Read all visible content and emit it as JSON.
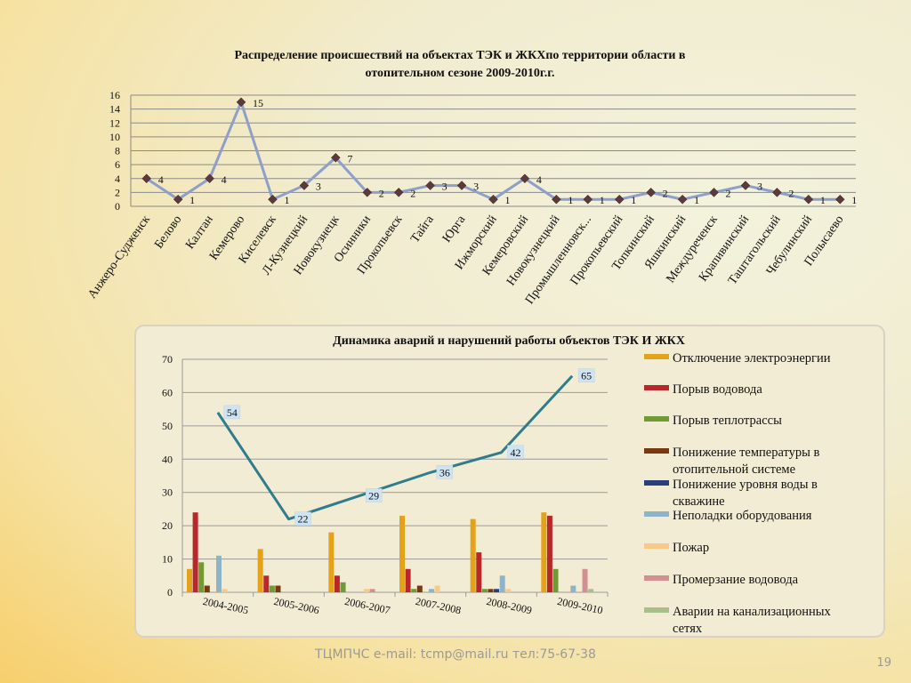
{
  "chart_data": [
    {
      "type": "line",
      "title_lines": [
        "Распределение происшествий на объектах ТЭК и ЖКХпо территории области в",
        "отопительном сезоне 2009-2010г.г."
      ],
      "categories": [
        "Анжеро-Судженск",
        "Белово",
        "Калтан",
        "Кемерово",
        "Киселевск",
        "Л-Кузнецкий",
        "Новокузнецк",
        "Осинники",
        "Прокопьевск",
        "Тайга",
        "Юрга",
        "Ижморский",
        "Кемеровский",
        "Новокузнецкий",
        "Промышленновск...",
        "Прокопьевский",
        "Топкинский",
        "Яшкинский",
        "Междуреченск",
        "Крапивинский",
        "Таштагольский",
        "Чебулинский",
        "Полысаево"
      ],
      "values": [
        4,
        1,
        4,
        15,
        1,
        3,
        7,
        2,
        2,
        3,
        3,
        1,
        4,
        1,
        1,
        1,
        2,
        1,
        2,
        3,
        2,
        1,
        1
      ],
      "ylim": [
        0,
        16
      ],
      "yticks": [
        "0",
        "2",
        "4",
        "6",
        "8",
        "10",
        "12",
        "14",
        "16"
      ],
      "grid": true,
      "colors": {
        "line": "#8e9fc9",
        "marker": "#5a3a3a"
      }
    },
    {
      "type": "bar",
      "title": "Динамика аварий и нарушений работы объектов ТЭК И ЖКХ",
      "categories": [
        "2004-2005",
        "2005-2006",
        "2006-2007",
        "2007-2008",
        "2008-2009",
        "2009-2010"
      ],
      "ylim": [
        0,
        70
      ],
      "yticks": [
        "0",
        "10",
        "20",
        "30",
        "40",
        "50",
        "60",
        "70"
      ],
      "grid": true,
      "legend_position": "right",
      "series": [
        {
          "name": "Отключение электроэнергии",
          "color": "#e3a21a",
          "values": [
            7,
            13,
            18,
            23,
            22,
            24
          ]
        },
        {
          "name": "Порыв водовода",
          "color": "#b8282b",
          "values": [
            24,
            5,
            5,
            7,
            12,
            23
          ]
        },
        {
          "name": "Порыв теплотрассы",
          "color": "#6f9a34",
          "values": [
            9,
            2,
            3,
            1,
            1,
            7
          ]
        },
        {
          "name": "Понижение температуры в отопительной системе",
          "color": "#7a3810",
          "values": [
            2,
            2,
            0,
            2,
            1,
            0
          ]
        },
        {
          "name": "Понижение уровня воды в скважине",
          "color": "#2a3f7a",
          "values": [
            0,
            0,
            0,
            0,
            1,
            0
          ]
        },
        {
          "name": "Неполадки оборудования",
          "color": "#8eb4c8",
          "values": [
            11,
            0,
            0,
            1,
            5,
            2
          ]
        },
        {
          "name": "Пожар",
          "color": "#f9c98a",
          "values": [
            1,
            0,
            1,
            2,
            1,
            0
          ]
        },
        {
          "name": "Промерзание водовода",
          "color": "#d49090",
          "values": [
            0,
            0,
            1,
            0,
            0,
            7
          ]
        },
        {
          "name": "Аварии на канализационных сетях",
          "color": "#a8bf8a",
          "values": [
            0,
            0,
            0,
            0,
            0,
            1
          ]
        }
      ],
      "total_line": {
        "color": "#2e7d8c",
        "values": [
          54,
          22,
          29,
          36,
          42,
          65
        ]
      }
    }
  ],
  "footer": "ТЦМПЧС e-mail: tcmp@mail.ru тел:75-67-38",
  "page_number": "19"
}
